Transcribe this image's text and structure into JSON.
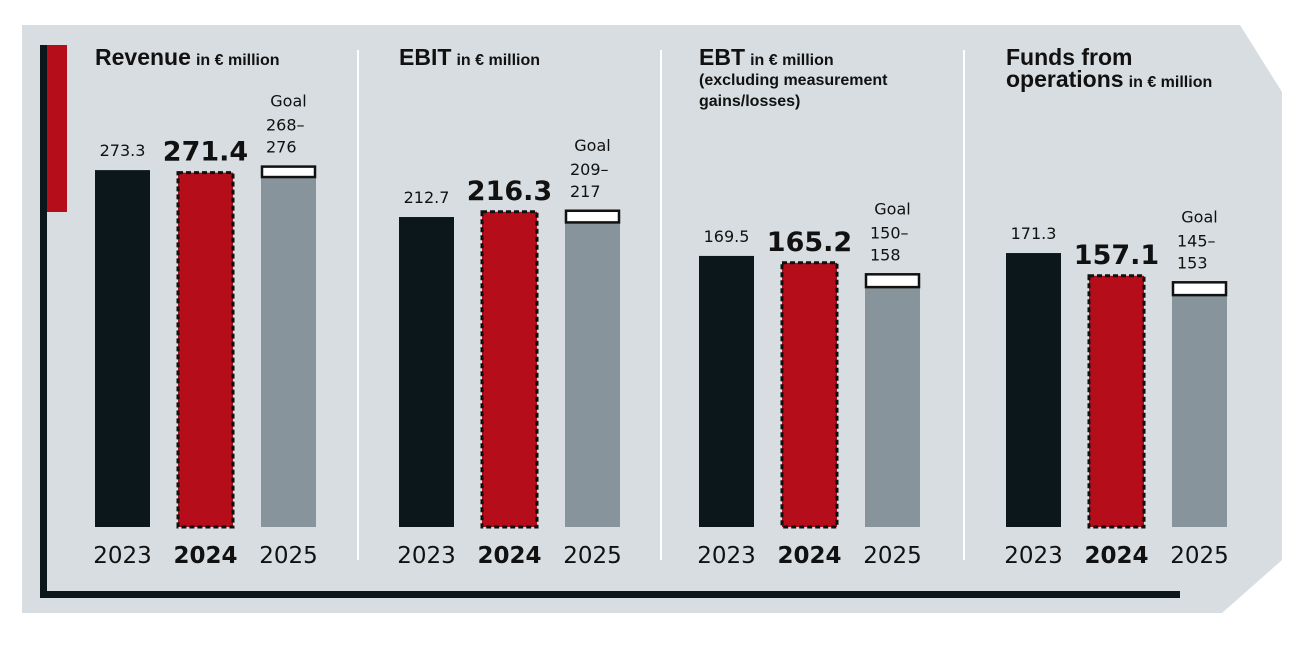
{
  "chart_data": [
    {
      "type": "bar",
      "title": [
        "Revenue"
      ],
      "subtitle": "in € million",
      "categories": [
        "2023",
        "2024",
        "2025"
      ],
      "values": [
        273.3,
        271.4,
        null
      ],
      "goal": {
        "label": "Goal",
        "low": 268,
        "high": 276,
        "low_label": "268–",
        "high_label": "276"
      },
      "colors": [
        "#0c171b",
        "#b50d1a",
        "#87949b"
      ],
      "ylim": [
        0,
        327
      ]
    },
    {
      "type": "bar",
      "title": [
        "EBIT"
      ],
      "subtitle": "in € million",
      "categories": [
        "2023",
        "2024",
        "2025"
      ],
      "values": [
        212.7,
        216.3,
        null
      ],
      "goal": {
        "label": "Goal",
        "low": 209,
        "high": 217,
        "low_label": "209–",
        "high_label": "217"
      },
      "colors": [
        "#0c171b",
        "#b50d1a",
        "#87949b"
      ],
      "ylim": [
        0,
        293
      ]
    },
    {
      "type": "bar",
      "title": [
        "EBT"
      ],
      "subtitle": "in € million",
      "note": [
        "(excluding measurement",
        "gains/losses)"
      ],
      "categories": [
        "2023",
        "2024",
        "2025"
      ],
      "values": [
        169.5,
        165.2,
        null
      ],
      "goal": {
        "label": "Goal",
        "low": 150,
        "high": 158,
        "low_label": "150–",
        "high_label": "158"
      },
      "colors": [
        "#0c171b",
        "#b50d1a",
        "#87949b"
      ],
      "ylim": [
        0,
        267
      ]
    },
    {
      "type": "bar",
      "title": [
        "Funds from",
        "operations"
      ],
      "subtitle": "in € million",
      "categories": [
        "2023",
        "2024",
        "2025"
      ],
      "values": [
        171.3,
        157.1,
        null
      ],
      "goal": {
        "label": "Goal",
        "low": 145,
        "high": 153,
        "low_label": "145–",
        "high_label": "153"
      },
      "colors": [
        "#0c171b",
        "#b50d1a",
        "#87949b"
      ],
      "ylim": [
        0,
        267
      ]
    }
  ]
}
